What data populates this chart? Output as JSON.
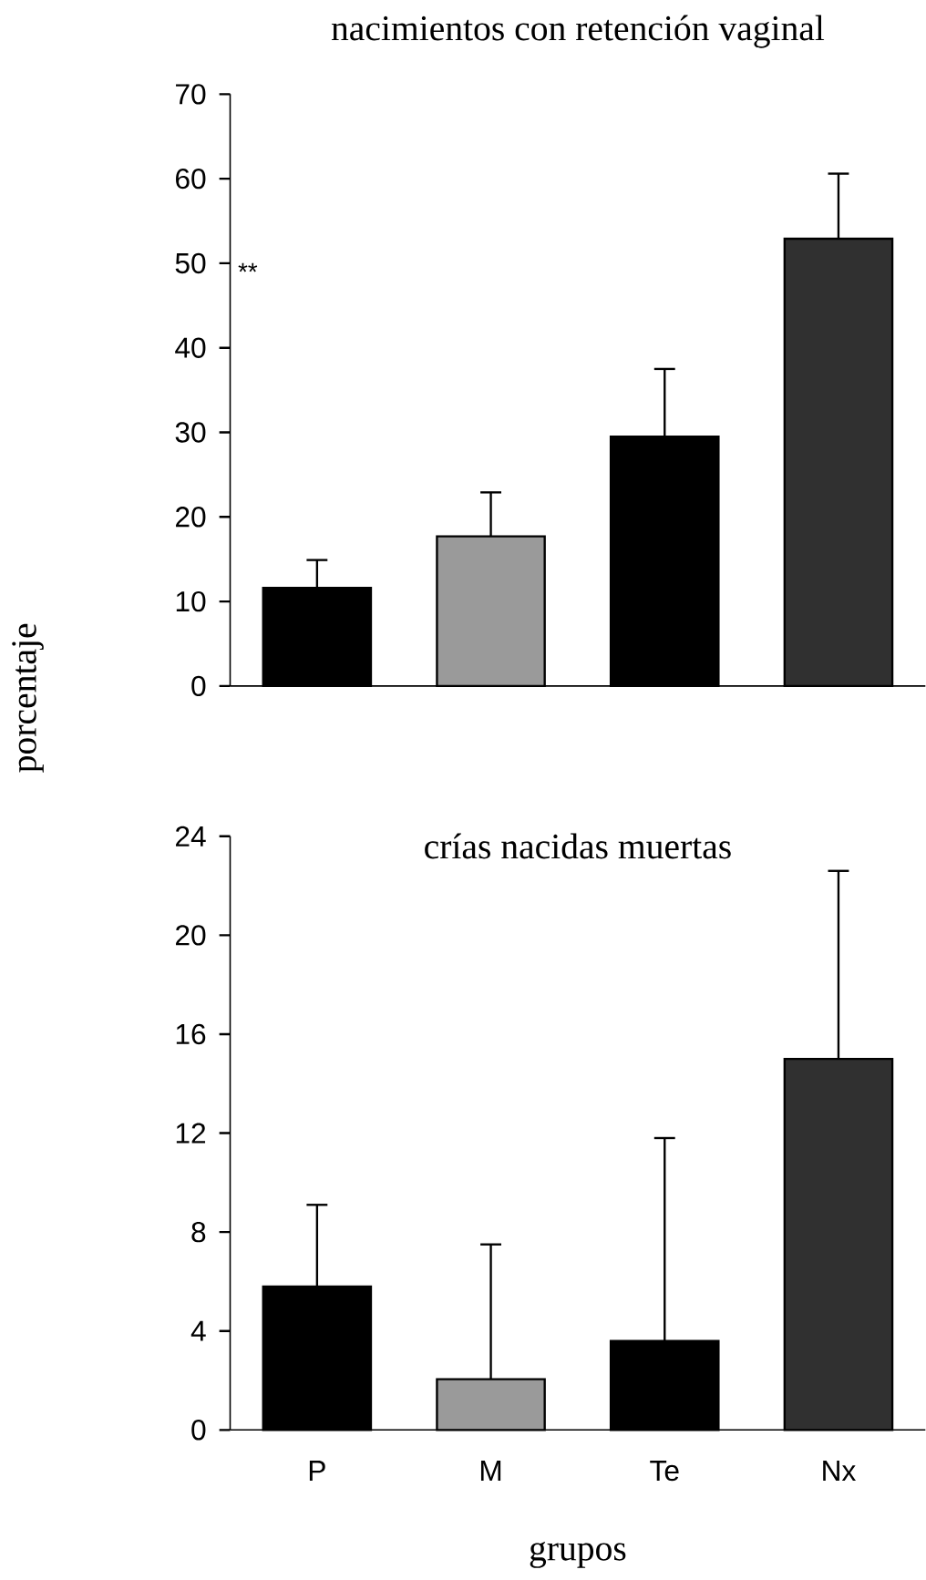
{
  "chart_data": [
    {
      "type": "bar",
      "title": "nacimientos con retención vaginal",
      "ylabel": "porcentaje",
      "categories": [
        null,
        null,
        null,
        null
      ],
      "values": [
        11.6,
        17.7,
        29.5,
        52.9
      ],
      "colors": [
        "#000000",
        "#9a9a9a",
        "#000000",
        "#303030"
      ],
      "errors": [
        [
          11.6,
          14.9
        ],
        [
          17.7,
          22.9
        ],
        [
          29.5,
          37.5
        ],
        [
          52.9,
          60.6
        ]
      ],
      "ylim": [
        0,
        70
      ],
      "yticks": [
        0,
        10,
        20,
        30,
        40,
        50,
        60,
        70
      ],
      "tick_labels": "y",
      "annotations": [
        "**"
      ]
    },
    {
      "type": "bar",
      "title": "crías nacidas muertas",
      "xlabel": "grupos",
      "categories": [
        "P",
        "M",
        "Te",
        "Nx"
      ],
      "values": [
        5.8,
        2.05,
        3.6,
        15.0
      ],
      "colors": [
        "#000000",
        "#9a9a9a",
        "#000000",
        "#303030"
      ],
      "errors": [
        [
          5.8,
          9.1
        ],
        [
          2.05,
          7.5
        ],
        [
          3.6,
          11.8
        ],
        [
          15.0,
          22.6
        ]
      ],
      "ylim": [
        0,
        24
      ],
      "yticks": [
        0,
        4,
        8,
        12,
        16,
        20,
        24
      ]
    }
  ]
}
